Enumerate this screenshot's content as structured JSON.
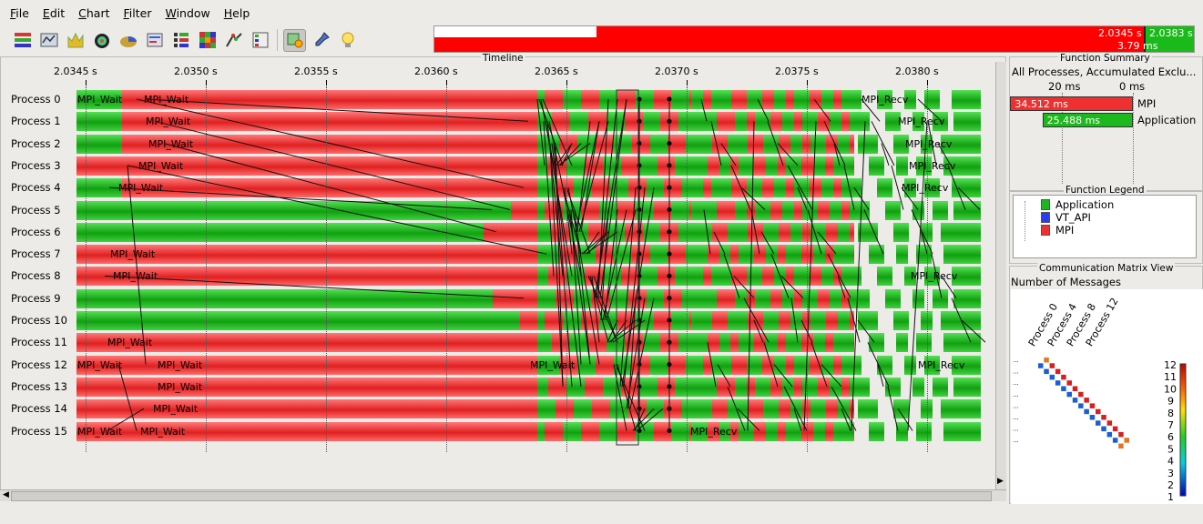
{
  "menu": [
    "File",
    "Edit",
    "Chart",
    "Filter",
    "Window",
    "Help"
  ],
  "toolbar": {
    "icons": [
      "timeline-icon",
      "process-timeline-icon",
      "counter-timeline-icon",
      "summary-chart-icon",
      "pie-chart-icon",
      "message-summary-icon",
      "process-profile-icon",
      "communication-matrix-icon",
      "call-tree-icon",
      "function-legend-icon",
      "select-tool-icon",
      "pin-tool-icon",
      "hint-icon"
    ]
  },
  "zoom": {
    "left_time": "2.0345 s",
    "right_time": "2.0383 s",
    "duration": "3.79 ms"
  },
  "timeline": {
    "title": "Timeline",
    "ticks": [
      "2.0345 s",
      "2.0350 s",
      "2.0355 s",
      "2.0360 s",
      "2.0365 s",
      "2.0370 s",
      "2.0375 s",
      "2.0380 s"
    ],
    "processes": [
      "Process 0",
      "Process 1",
      "Process 2",
      "Process 3",
      "Process 4",
      "Process 5",
      "Process 6",
      "Process 7",
      "Process 8",
      "Process 9",
      "Process 10",
      "Process 11",
      "Process 12",
      "Process 13",
      "Process 14",
      "Process 15"
    ],
    "seg_labels": [
      [
        "MPI_Wait",
        "MPI_Wait",
        "MPI_Recv"
      ],
      [
        "MPI_Wait",
        "MPI_Recv"
      ],
      [
        "MPI_Wait",
        "MPI_Recv"
      ],
      [
        "MPI_Wait",
        "MPI_Recv"
      ],
      [
        "MPI_Wait",
        "MPI_Recv"
      ],
      [],
      [],
      [
        "MPI_Wait"
      ],
      [
        "MPI_Wait",
        "MPI_Recv"
      ],
      [],
      [],
      [
        "MPI_Wait"
      ],
      [
        "MPI_Wait",
        "MPI_Wait",
        "MPI_Wait",
        "MPI_Recv"
      ],
      [
        "MPI_Wait"
      ],
      [
        "MPI_Wait"
      ],
      [
        "MPI_Wait",
        "MPI_Wait",
        "MPI_Recv"
      ]
    ]
  },
  "function_summary": {
    "title": "Function Summary",
    "subtitle": "All Processes, Accumulated Exclu...",
    "axis": [
      "20 ms",
      "0 ms"
    ],
    "rows": [
      {
        "name": "MPI",
        "value": "34.512 ms",
        "ms": 34.512,
        "color": "#ee3030"
      },
      {
        "name": "Application",
        "value": "25.488 ms",
        "ms": 25.488,
        "color": "#1db81d"
      }
    ]
  },
  "function_legend": {
    "title": "Function Legend",
    "items": [
      {
        "name": "Application",
        "color": "#1fb51f"
      },
      {
        "name": "VT_API",
        "color": "#2c3cf0"
      },
      {
        "name": "MPI",
        "color": "#ee3030"
      }
    ]
  },
  "comm_matrix": {
    "title": "Communication Matrix View",
    "subtitle": "Number of Messages",
    "col_labels": [
      "Process 0",
      "Process 4",
      "Process 8",
      "Process 12"
    ],
    "scale": [
      "12",
      "11",
      "10",
      "9",
      "8",
      "7",
      "6",
      "5",
      "4",
      "3",
      "2",
      "1"
    ]
  }
}
